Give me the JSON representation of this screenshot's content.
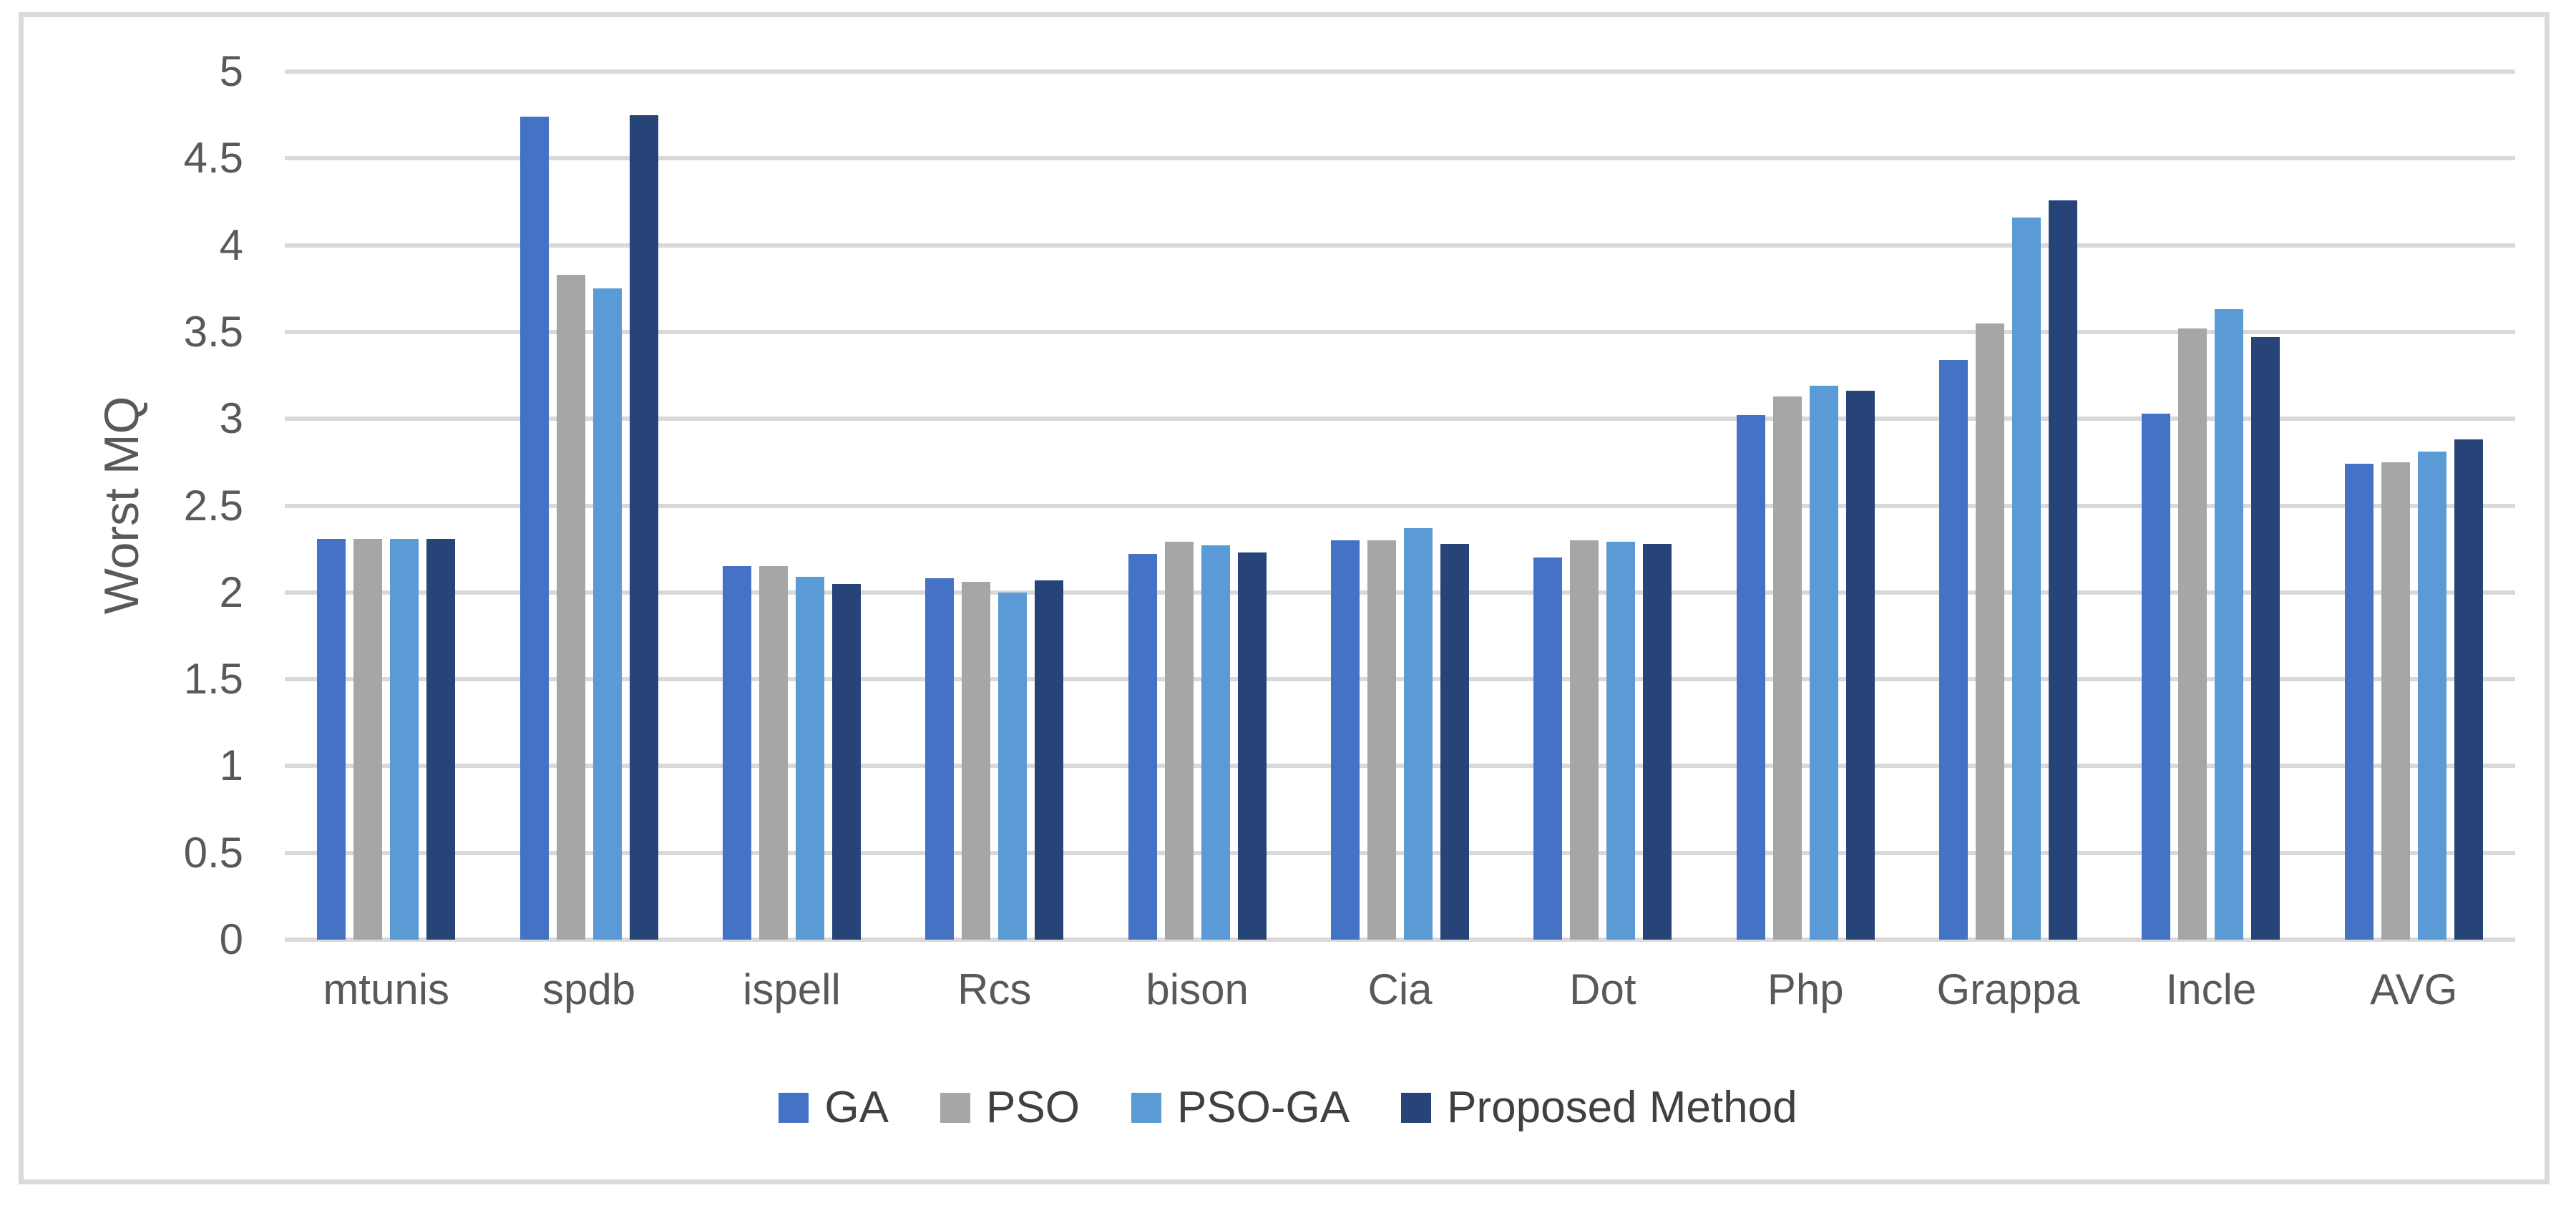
{
  "chart_data": {
    "type": "bar",
    "title": "",
    "xlabel": "",
    "ylabel": "Worst MQ",
    "ylim": [
      0,
      5
    ],
    "ytick_step": 0.5,
    "yticks": [
      "0",
      "0.5",
      "1",
      "1.5",
      "2",
      "2.5",
      "3",
      "3.5",
      "4",
      "4.5",
      "5"
    ],
    "grid": "horizontal",
    "legend_position": "bottom-center",
    "categories": [
      "mtunis",
      "spdb",
      "ispell",
      "Rcs",
      "bison",
      "Cia",
      "Dot",
      "Php",
      "Grappa",
      "Incle",
      "AVG"
    ],
    "series": [
      {
        "name": "GA",
        "color": "#4472C4",
        "values": [
          2.31,
          4.74,
          2.15,
          2.08,
          2.22,
          2.3,
          2.2,
          3.02,
          3.34,
          3.03,
          2.74
        ]
      },
      {
        "name": "PSO",
        "color": "#A6A6A6",
        "values": [
          2.31,
          3.83,
          2.15,
          2.06,
          2.29,
          2.3,
          2.3,
          3.13,
          3.55,
          3.52,
          2.75
        ]
      },
      {
        "name": "PSO-GA",
        "color": "#5B9BD5",
        "values": [
          2.31,
          3.75,
          2.09,
          2.0,
          2.27,
          2.37,
          2.29,
          3.19,
          4.16,
          3.63,
          2.81
        ]
      },
      {
        "name": "Proposed Method",
        "color": "#264478",
        "values": [
          2.31,
          4.75,
          2.05,
          2.07,
          2.23,
          2.28,
          2.28,
          3.16,
          4.26,
          3.47,
          2.88
        ]
      }
    ]
  },
  "style_colors": {
    "gridline": "#D9D9D9",
    "frame_border": "#DADADA",
    "axis_text": "#595959",
    "legend_text": "#404040",
    "background": "#FFFFFF"
  }
}
